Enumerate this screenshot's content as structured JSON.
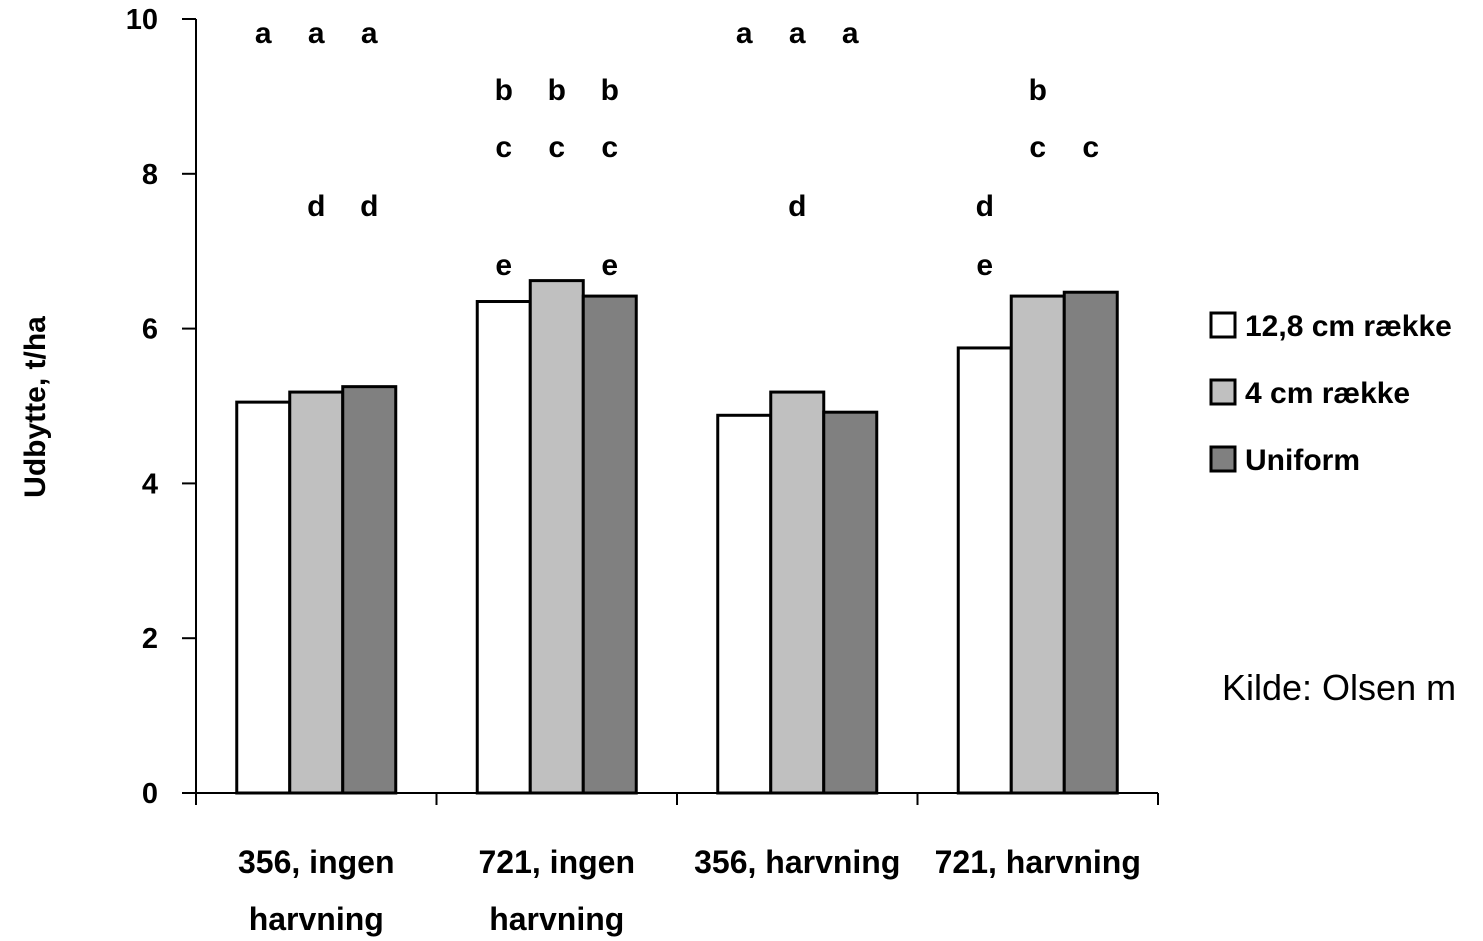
{
  "chart_data": {
    "type": "bar",
    "ylabel": "Udbytte, t/ha",
    "ylim": [
      0,
      10
    ],
    "yticks": [
      0,
      2,
      4,
      6,
      8,
      10
    ],
    "grid": false,
    "legend_position": "right",
    "categories": [
      [
        "356, ingen",
        "harvning"
      ],
      [
        "721, ingen",
        "harvning"
      ],
      [
        "356, harvning"
      ],
      [
        "721, harvning"
      ]
    ],
    "series": [
      {
        "name": "12,8 cm række",
        "color": "#ffffff",
        "values": [
          5.05,
          6.35,
          4.88,
          5.75
        ]
      },
      {
        "name": "4 cm række",
        "color": "#c0c0c0",
        "values": [
          5.18,
          6.62,
          5.18,
          6.42
        ]
      },
      {
        "name": "Uniform",
        "color": "#808080",
        "values": [
          5.25,
          6.42,
          4.92,
          6.47
        ]
      }
    ],
    "significance_letters": [
      [
        [
          "a"
        ],
        [
          "a",
          "d"
        ],
        [
          "a",
          "d"
        ]
      ],
      [
        [
          "b",
          "c",
          "e"
        ],
        [
          "b",
          "c"
        ],
        [
          "b",
          "c",
          "e"
        ]
      ],
      [
        [
          "a"
        ],
        [
          "a",
          "d"
        ],
        [
          "a"
        ]
      ],
      [
        [
          "d",
          "e"
        ],
        [
          "b",
          "c"
        ],
        [
          "c"
        ]
      ]
    ]
  },
  "source_note": "Kilde: Olsen m"
}
